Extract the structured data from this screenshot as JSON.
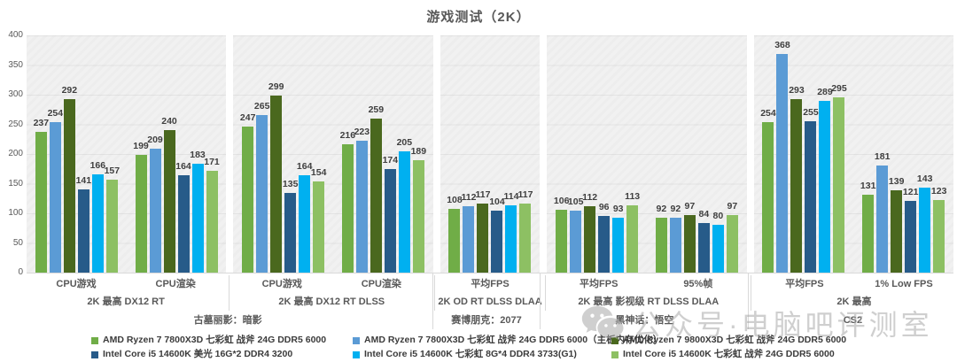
{
  "title": "游戏测试（2K）",
  "watermark": {
    "text": "公众号·电脑吧评测室",
    "icon": "wechat-icon",
    "color": "#a8a8a8"
  },
  "chart_data": {
    "type": "bar",
    "title": "游戏测试（2K）",
    "xlabel": "",
    "ylabel": "",
    "ylim": [
      0,
      400
    ],
    "ytick_step": 50,
    "grid": true,
    "legend_position": "bottom",
    "series": [
      {
        "name": "AMD Ryzen 7 7800X3D 七彩虹 战斧 24G DDR5 6000",
        "color": "#70AD47"
      },
      {
        "name": "AMD Ryzen 7 7800X3D 七彩虹 战斧 24G DDR5 6000（主板内存优化）",
        "color": "#5B9BD5"
      },
      {
        "name": "AMD Ryzen 7 9800X3D 七彩虹 战斧 24G DDR5 6000",
        "color": "#4A681E"
      },
      {
        "name": "Intel Core i5 14600K 美光 16G*2 DDR4 3200",
        "color": "#275B89"
      },
      {
        "name": "Intel Core i5 14600K 七彩虹 8G*4 DDR4 3733(G1)",
        "color": "#00B0F0"
      },
      {
        "name": "Intel Core i5 14600K 七彩虹 战斧 24G DDR5 6000",
        "color": "#8DC063"
      }
    ],
    "panels": [
      {
        "setting": "2K 最高 DX12 RT",
        "groups": [
          {
            "label": "CPU游戏",
            "values": [
              237,
              254,
              292,
              141,
              166,
              157
            ]
          },
          {
            "label": "CPU渲染",
            "values": [
              199,
              209,
              240,
              164,
              183,
              171
            ]
          }
        ]
      },
      {
        "setting": "2K 最高 DX12 RT DLSS",
        "groups": [
          {
            "label": "CPU游戏",
            "values": [
              247,
              265,
              299,
              135,
              164,
              154
            ]
          },
          {
            "label": "CPU渲染",
            "values": [
              216,
              223,
              259,
              174,
              205,
              189
            ]
          }
        ]
      },
      {
        "setting": "2K OD RT DLSS DLAA",
        "groups": [
          {
            "label": "平均FPS",
            "values": [
              108,
              112,
              117,
              104,
              114,
              117
            ]
          }
        ]
      },
      {
        "setting": "2K 最高 影视级 RT DLSS DLAA",
        "groups": [
          {
            "label": "平均FPS",
            "values": [
              106,
              105,
              112,
              96,
              93,
              113
            ]
          },
          {
            "label": "95%帧",
            "values": [
              92,
              92,
              97,
              84,
              80,
              97
            ]
          }
        ]
      },
      {
        "setting": "2K 最高",
        "groups": [
          {
            "label": "平均FPS",
            "values": [
              254,
              368,
              293,
              255,
              289,
              295
            ]
          },
          {
            "label": "1% Low FPS",
            "values": [
              131,
              181,
              139,
              121,
              143,
              123
            ]
          }
        ]
      }
    ],
    "game_spans": [
      {
        "label": "古墓丽影：暗影",
        "span": 4
      },
      {
        "label": "赛博朋克：2077",
        "span": 1
      },
      {
        "label": "黑神话：悟空",
        "span": 2
      },
      {
        "label": "CS2",
        "span": 2
      }
    ]
  }
}
